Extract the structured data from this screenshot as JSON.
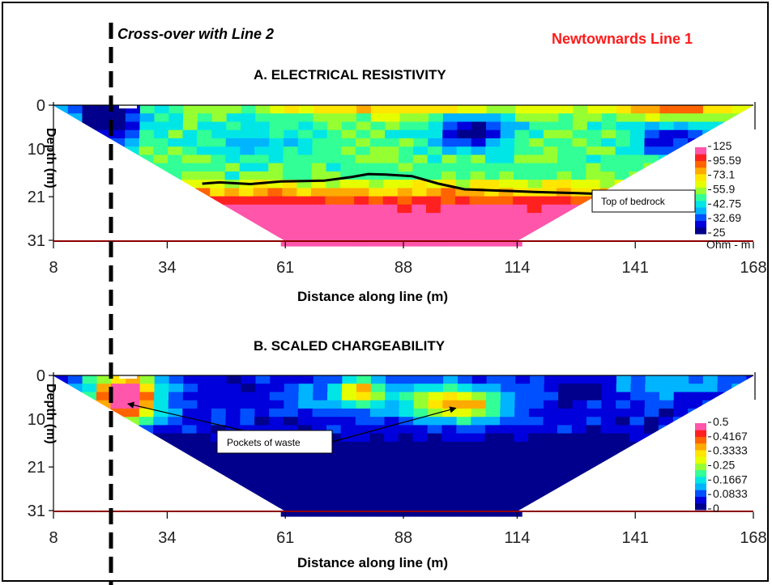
{
  "header": {
    "crossover_label": "Cross-over with Line 2",
    "line_title": "Newtownards  Line 1",
    "line_title_color": "#ff1a1a"
  },
  "colors": {
    "scale": [
      "#00008c",
      "#0000dc",
      "#0050ff",
      "#00b4ff",
      "#00e6e6",
      "#32ff96",
      "#96ff32",
      "#e6ff00",
      "#ffe600",
      "#ffaa00",
      "#ff6400",
      "#ff2020",
      "#ff55aa"
    ],
    "frame": "#000000"
  },
  "chart_data": [
    {
      "type": "heatmap",
      "title": "A.   ELECTRICAL RESISTIVITY",
      "xlabel": "Distance along line (m)",
      "ylabel": "Depth (m)",
      "x_ticks": [
        "8",
        "34",
        "61",
        "88",
        "114",
        "141",
        "168"
      ],
      "y_ticks": [
        "0",
        "10",
        "21",
        "31"
      ],
      "xlim": [
        8,
        168
      ],
      "ylim": [
        0,
        31
      ],
      "colorbar": {
        "labels": [
          "125",
          "95.59",
          "73.1",
          "55.9",
          "42.75",
          "32.69",
          "25"
        ],
        "unit": "Ohm - m",
        "min": 25,
        "max": 125
      },
      "annotations": [
        {
          "text": "Top of bedrock",
          "x": 139,
          "depth": 20.5
        }
      ],
      "bedrock_line": {
        "x": [
          42,
          46,
          53,
          60,
          70,
          76,
          80,
          84,
          90,
          96,
          102,
          110,
          118,
          128,
          134
        ],
        "depth": [
          18.0,
          17.7,
          18.1,
          17.5,
          17.3,
          16.5,
          15.8,
          15.9,
          16.3,
          18.0,
          19.3,
          19.6,
          19.9,
          20.2,
          20.4
        ]
      }
    },
    {
      "type": "heatmap",
      "title": "B.   SCALED CHARGEABILITY",
      "xlabel": "Distance along line (m)",
      "ylabel": "Depth (m)",
      "x_ticks": [
        "8",
        "34",
        "61",
        "88",
        "114",
        "141",
        "168"
      ],
      "y_ticks": [
        "0",
        "10",
        "21",
        "31"
      ],
      "xlim": [
        8,
        168
      ],
      "ylim": [
        0,
        31
      ],
      "colorbar": {
        "labels": [
          "0.5",
          "0.4167",
          "0.3333",
          "0.25",
          "0.1667",
          "0.0833",
          "0"
        ],
        "unit": "",
        "min": 0,
        "max": 0.5
      },
      "annotations": [
        {
          "text": "Pockets of waste",
          "x": 31,
          "depth": 15
        }
      ],
      "arrow_targets": [
        {
          "x": 25,
          "depth": 6.5
        },
        {
          "x": 100,
          "depth": 7.5
        }
      ]
    }
  ]
}
